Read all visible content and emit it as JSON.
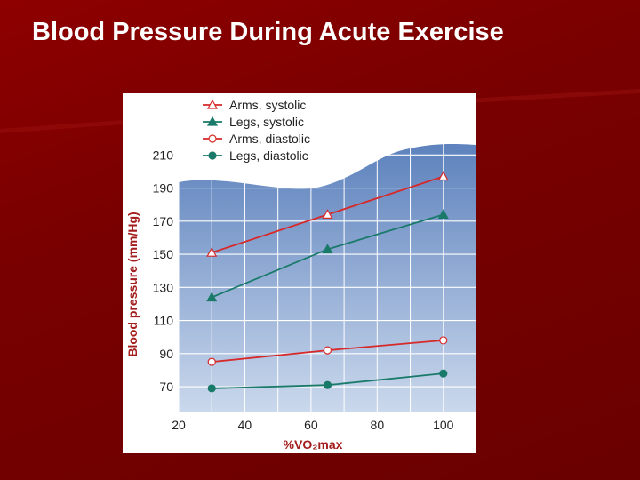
{
  "slide": {
    "title": "Blood Pressure During Acute Exercise"
  },
  "chart_data": {
    "type": "line",
    "xlabel": "%VO₂max",
    "ylabel": "Blood pressure (mm/Hg)",
    "xlim": [
      20,
      110
    ],
    "ylim": [
      55,
      215
    ],
    "x_ticks": [
      20,
      40,
      60,
      80,
      100
    ],
    "y_ticks": [
      70,
      90,
      110,
      130,
      150,
      170,
      190,
      210
    ],
    "grid": true,
    "legend_position": "top-left",
    "series": [
      {
        "name": "Arms, systolic",
        "color": "#d62a2a",
        "marker": "open-triangle",
        "x": [
          30,
          65,
          100
        ],
        "y": [
          151,
          174,
          197
        ]
      },
      {
        "name": "Legs, systolic",
        "color": "#1a7a6a",
        "marker": "filled-triangle",
        "x": [
          30,
          65,
          100
        ],
        "y": [
          124,
          153,
          174
        ]
      },
      {
        "name": "Arms, diastolic",
        "color": "#d62a2a",
        "marker": "open-circle",
        "x": [
          30,
          65,
          100
        ],
        "y": [
          85,
          92,
          98
        ]
      },
      {
        "name": "Legs, diastolic",
        "color": "#1a7a6a",
        "marker": "filled-circle",
        "x": [
          30,
          65,
          100
        ],
        "y": [
          69,
          71,
          78
        ]
      }
    ]
  }
}
